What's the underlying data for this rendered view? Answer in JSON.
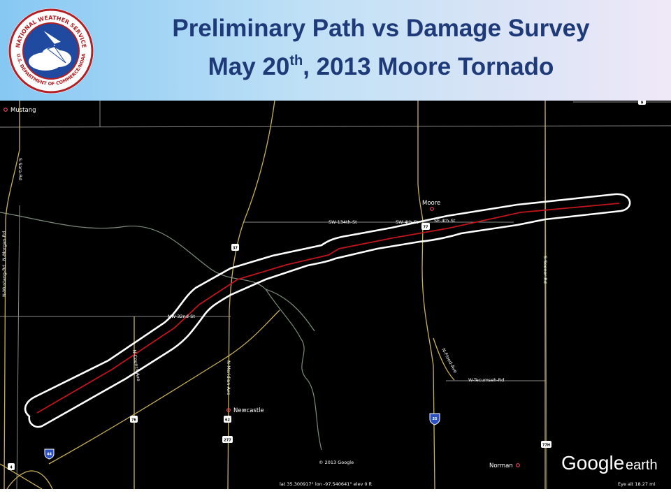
{
  "header": {
    "title_line1": "Preliminary Path vs Damage Survey",
    "title_line2_a": "May 20",
    "title_line2_sup": "th",
    "title_line2_b": ", 2013 Moore Tornado"
  },
  "logo": {
    "text_top": "NATIONAL WEATHER SERVICE",
    "text_bottom": "U.S. DEPARTMENT OF COMMERCE/NOAA",
    "icon": "lightning-cloud-icon"
  },
  "map": {
    "towns": [
      "Mustang",
      "Moore",
      "Newcastle",
      "Norman"
    ],
    "roads": [
      "S-Sara-Rd",
      "SW-134th-St",
      "SW-4th-St",
      "SE-4th-St",
      "NW-32nd-St",
      "N-Council-Ave",
      "N-Meridian-Ave",
      "N-Flood-Ave",
      "W-Tecumseh-Rd",
      "S-Sooner-Rd",
      "N-Mustang-Rd",
      "N-Morgan-Rd"
    ],
    "shields": [
      "37",
      "77",
      "76",
      "62",
      "277",
      "35",
      "44",
      "4",
      "77H",
      "9"
    ],
    "copyright": "© 2013 Google",
    "coords": "lat  35.300917°  lon  -97.540641°  elev      0 ft",
    "eye_alt": "Eye alt    18.27 mi",
    "brand_a": "Google",
    "brand_b": "earth"
  },
  "colors": {
    "title": "#1f3a78",
    "path_outline": "#ffffff",
    "preliminary_path": "#c0151a",
    "roads": "#c9b35a",
    "section_lines": "#9a9a9a",
    "rivers": "#8a9a8a"
  }
}
